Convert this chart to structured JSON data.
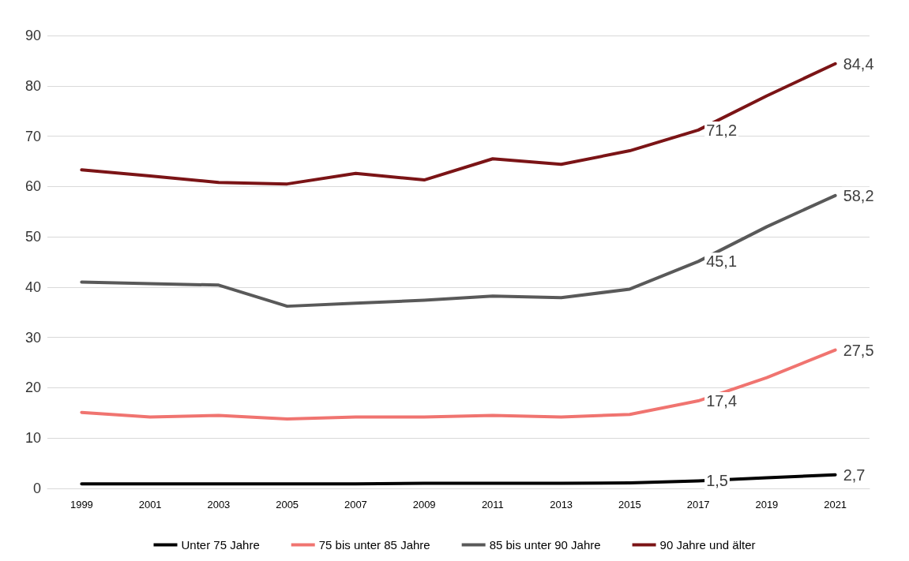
{
  "chart_data": {
    "type": "line",
    "categories": [
      "1999",
      "2001",
      "2003",
      "2005",
      "2007",
      "2009",
      "2011",
      "2013",
      "2015",
      "2017",
      "2019",
      "2021"
    ],
    "series": [
      {
        "name": "Unter 75 Jahre",
        "color": "#000000",
        "values": [
          0.9,
          0.9,
          0.9,
          0.9,
          0.9,
          1.0,
          1.0,
          1.0,
          1.1,
          1.5,
          2.1,
          2.7
        ],
        "value_labels": [
          null,
          null,
          null,
          null,
          null,
          null,
          null,
          null,
          null,
          "1,5",
          null,
          "2,7"
        ]
      },
      {
        "name": "75 bis unter 85 Jahre",
        "color": "#f07470",
        "values": [
          15.1,
          14.2,
          14.5,
          13.8,
          14.2,
          14.2,
          14.5,
          14.2,
          14.7,
          17.4,
          22.0,
          27.5
        ],
        "value_labels": [
          null,
          null,
          null,
          null,
          null,
          null,
          null,
          null,
          null,
          "17,4",
          null,
          "27,5"
        ]
      },
      {
        "name": "85 bis unter 90 Jahre",
        "color": "#595959",
        "values": [
          41.0,
          40.7,
          40.4,
          36.2,
          36.8,
          37.4,
          38.2,
          37.9,
          39.6,
          45.1,
          52.0,
          58.2
        ],
        "value_labels": [
          null,
          null,
          null,
          null,
          null,
          null,
          null,
          null,
          null,
          "45,1",
          null,
          "58,2"
        ]
      },
      {
        "name": "90 Jahre und älter",
        "color": "#7b1416",
        "values": [
          63.3,
          62.1,
          60.8,
          60.5,
          62.6,
          61.3,
          65.5,
          64.4,
          67.1,
          71.2,
          78.0,
          84.4
        ],
        "value_labels": [
          null,
          null,
          null,
          null,
          null,
          null,
          null,
          null,
          null,
          "71,2",
          null,
          "84,4"
        ]
      }
    ],
    "ylim": [
      0,
      90
    ],
    "yticks": [
      0,
      10,
      20,
      30,
      40,
      50,
      60,
      70,
      80,
      90
    ],
    "grid": "y",
    "legend": "bottom",
    "marker": "none",
    "line_style": "solid"
  }
}
